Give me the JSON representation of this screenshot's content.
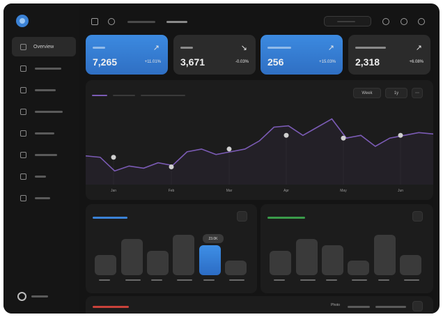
{
  "sidebar": {
    "active_label": "Overview",
    "items": [
      {
        "icon": "grid-icon",
        "label": "Overview"
      },
      {
        "icon": "calendar-icon",
        "label": ""
      },
      {
        "icon": "folder-icon",
        "label": ""
      },
      {
        "icon": "document-icon",
        "label": ""
      },
      {
        "icon": "inbox-icon",
        "label": ""
      },
      {
        "icon": "monitor-icon",
        "label": ""
      },
      {
        "icon": "list-icon",
        "label": ""
      },
      {
        "icon": "copy-icon",
        "label": ""
      }
    ],
    "user": {
      "icon": "user-icon"
    }
  },
  "header": {
    "icons": [
      "sidebar-toggle-icon",
      "star-icon",
      "sun-icon",
      "history-icon",
      "bell-icon"
    ]
  },
  "stats": [
    {
      "value": "7,265",
      "change": "+11.01%",
      "style": "blue"
    },
    {
      "value": "3,671",
      "change": "-0.03%",
      "style": "dark"
    },
    {
      "value": "256",
      "change": "+15.03%",
      "style": "blue"
    },
    {
      "value": "2,318",
      "change": "+6.08%",
      "style": "dark"
    }
  ],
  "line_chart": {
    "months": [
      "Jan",
      "Feb",
      "Mar",
      "Apr",
      "May",
      "Jun"
    ],
    "controls": [
      "Week",
      "1y"
    ],
    "colors": {
      "line": "#7b5bb5",
      "accent": "#3b82d6"
    }
  },
  "bar_chart_left": {
    "tooltip": "23.0K",
    "color": "#3b82d6"
  },
  "chart_data": [
    {
      "type": "line",
      "x": [
        "Jan",
        "Feb",
        "Mar",
        "Apr",
        "May",
        "Jun"
      ],
      "series": [
        {
          "values": [
            10,
            6.5,
            13,
            18,
            17,
            18
          ],
          "marked": true
        }
      ],
      "dense_series": [
        10.5,
        10,
        5,
        6.8,
        6,
        8,
        7,
        12,
        13,
        11,
        12,
        13,
        16,
        21,
        21.5,
        18,
        21,
        24,
        17,
        18,
        14,
        17,
        18,
        19,
        18.5
      ]
    },
    {
      "type": "bar",
      "categories": [
        "",
        "",
        "",
        "",
        "",
        ""
      ],
      "values": [
        14,
        25,
        17,
        28,
        21,
        10
      ],
      "highlight_index": 4
    },
    {
      "type": "bar",
      "categories": [
        "",
        "",
        "",
        "",
        "",
        ""
      ],
      "values": [
        17,
        25,
        21,
        10,
        28,
        14
      ]
    }
  ],
  "bottom_panel": {
    "legend_label": "Photo"
  }
}
